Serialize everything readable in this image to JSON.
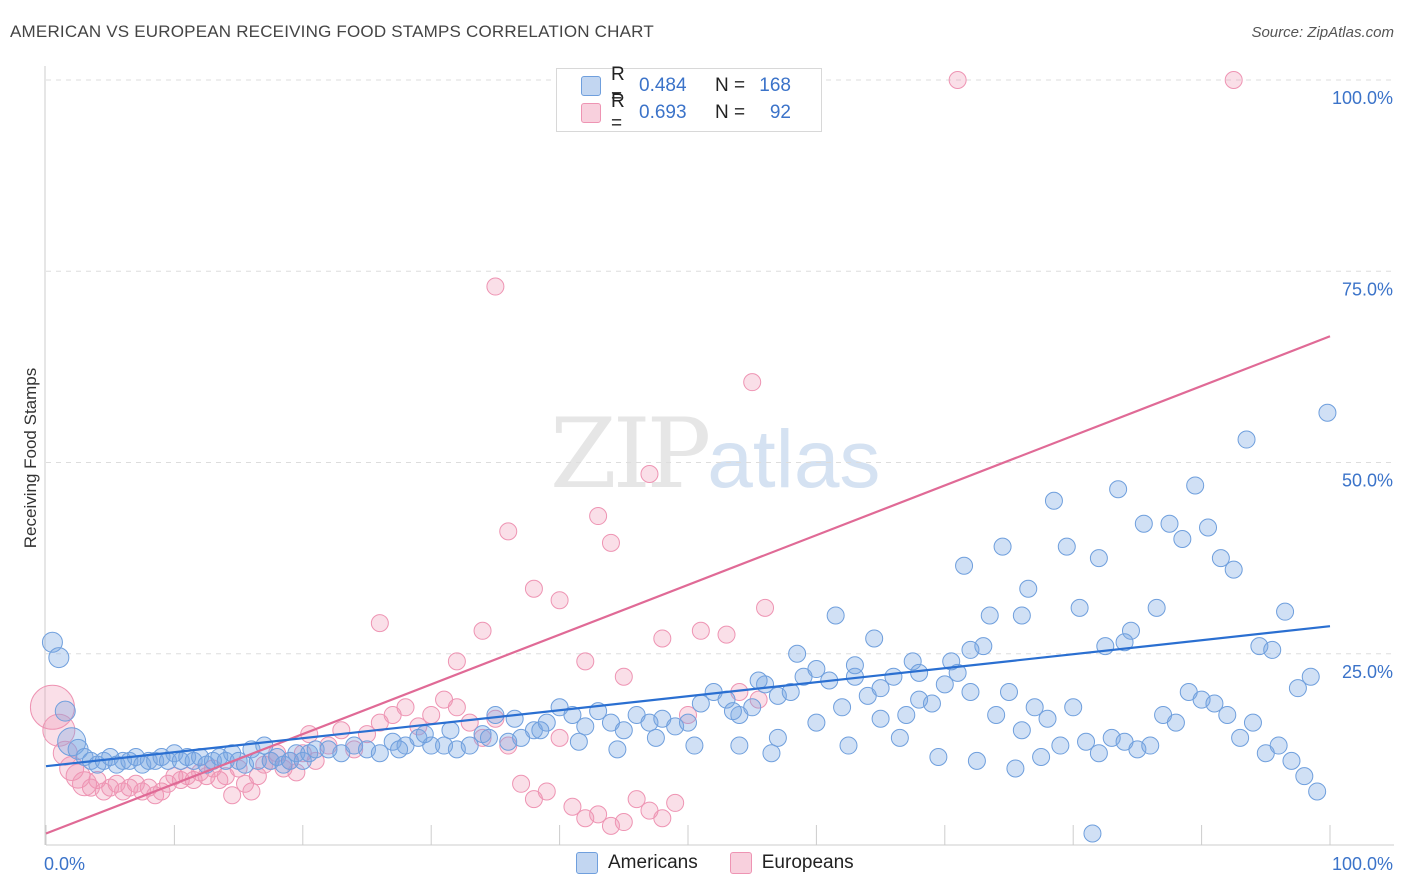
{
  "header": {
    "title": "AMERICAN VS EUROPEAN RECEIVING FOOD STAMPS CORRELATION CHART",
    "source": "Source: ZipAtlas.com"
  },
  "watermark": {
    "zip": "ZIP",
    "atlas": "atlas"
  },
  "colors": {
    "americans_fill": "rgba(120,165,225,0.35)",
    "americans_stroke": "#6f9fdd",
    "americans_line": "#2a6fd1",
    "europeans_fill": "rgba(240,150,180,0.30)",
    "europeans_stroke": "#ee94b3",
    "europeans_line": "#e06a96",
    "tick_label": "#3b73c9",
    "grid": "#dddddd"
  },
  "legend": {
    "rows": [
      {
        "r_label": "R =",
        "r_value": "0.484",
        "n_label": "N =",
        "n_value": "168"
      },
      {
        "r_label": "R =",
        "r_value": "0.693",
        "n_label": "N =",
        "n_value": "92"
      }
    ]
  },
  "bottom_legend": {
    "americans": "Americans",
    "europeans": "Europeans"
  },
  "chart_data": {
    "type": "scatter",
    "title": "AMERICAN VS EUROPEAN RECEIVING FOOD STAMPS CORRELATION CHART",
    "xlabel": "",
    "ylabel": "Receiving Food Stamps",
    "xlim": [
      0,
      100
    ],
    "ylim": [
      0,
      100
    ],
    "x_tick_labels": [
      "0.0%",
      "100.0%"
    ],
    "y_ticks": [
      25,
      50,
      75,
      100
    ],
    "y_tick_labels": [
      "25.0%",
      "50.0%",
      "75.0%",
      "100.0%"
    ],
    "grid": true,
    "legend_position": "top-center",
    "series": [
      {
        "name": "Americans",
        "r": 0.484,
        "n": 168,
        "trend": {
          "x": [
            0,
            100
          ],
          "y": [
            10.3,
            28.6
          ]
        },
        "points": [
          [
            0.5,
            26.5
          ],
          [
            1.0,
            24.5
          ],
          [
            1.5,
            17.5
          ],
          [
            2.0,
            13.5
          ],
          [
            2.5,
            12.5
          ],
          [
            3.0,
            11.5
          ],
          [
            3.5,
            11
          ],
          [
            4.0,
            10.5
          ],
          [
            4.5,
            11
          ],
          [
            5.0,
            11.5
          ],
          [
            5.5,
            10.5
          ],
          [
            6.0,
            11
          ],
          [
            6.5,
            11
          ],
          [
            7.0,
            11.5
          ],
          [
            7.5,
            10.5
          ],
          [
            8.0,
            11
          ],
          [
            8.5,
            11
          ],
          [
            9.0,
            11.5
          ],
          [
            9.5,
            11
          ],
          [
            10.0,
            12
          ],
          [
            10.5,
            11
          ],
          [
            11.0,
            11.5
          ],
          [
            11.5,
            11
          ],
          [
            12.0,
            11.5
          ],
          [
            12.5,
            10.5
          ],
          [
            13.0,
            11
          ],
          [
            13.5,
            11.5
          ],
          [
            14.0,
            11
          ],
          [
            14.5,
            12
          ],
          [
            15.0,
            11
          ],
          [
            15.5,
            10.5
          ],
          [
            16.0,
            12.5
          ],
          [
            16.5,
            11
          ],
          [
            17.0,
            13
          ],
          [
            17.5,
            11
          ],
          [
            18.0,
            11.5
          ],
          [
            18.5,
            10.5
          ],
          [
            19.0,
            11
          ],
          [
            19.5,
            12
          ],
          [
            20.0,
            11
          ],
          [
            20.5,
            12
          ],
          [
            21.0,
            12.5
          ],
          [
            22.0,
            12.5
          ],
          [
            23.0,
            12
          ],
          [
            24.0,
            13
          ],
          [
            25.0,
            12.5
          ],
          [
            26.0,
            12
          ],
          [
            27.0,
            13.5
          ],
          [
            28.0,
            13
          ],
          [
            29.0,
            14
          ],
          [
            30.0,
            13
          ],
          [
            31.0,
            13
          ],
          [
            32.0,
            12.5
          ],
          [
            33.0,
            13
          ],
          [
            34.0,
            14.5
          ],
          [
            35.0,
            17
          ],
          [
            36.0,
            13.5
          ],
          [
            37.0,
            14
          ],
          [
            38.0,
            15
          ],
          [
            39.0,
            16
          ],
          [
            40.0,
            18
          ],
          [
            41.0,
            17
          ],
          [
            42.0,
            15.5
          ],
          [
            43.0,
            17.5
          ],
          [
            44.0,
            16
          ],
          [
            45.0,
            15
          ],
          [
            46.0,
            17
          ],
          [
            47.0,
            16
          ],
          [
            48.0,
            16.5
          ],
          [
            49.0,
            15.5
          ],
          [
            50.0,
            16
          ],
          [
            51.0,
            18.5
          ],
          [
            52.0,
            20
          ],
          [
            53.0,
            19
          ],
          [
            54.0,
            17
          ],
          [
            55.0,
            18
          ],
          [
            56.0,
            21
          ],
          [
            57.0,
            19.5
          ],
          [
            58.0,
            20
          ],
          [
            59.0,
            22
          ],
          [
            60.0,
            23
          ],
          [
            61.0,
            21.5
          ],
          [
            62.0,
            18
          ],
          [
            63.0,
            22
          ],
          [
            64.0,
            19.5
          ],
          [
            65.0,
            20.5
          ],
          [
            66.0,
            22
          ],
          [
            67.0,
            17
          ],
          [
            68.0,
            19
          ],
          [
            69.0,
            18.5
          ],
          [
            70.0,
            21
          ],
          [
            71.0,
            22.5
          ],
          [
            72.0,
            20
          ],
          [
            73.0,
            26
          ],
          [
            74.0,
            17
          ],
          [
            75.0,
            20
          ],
          [
            76.0,
            15
          ],
          [
            77.0,
            18
          ],
          [
            78.0,
            16.5
          ],
          [
            79.0,
            13
          ],
          [
            80.0,
            18
          ],
          [
            81.0,
            13.5
          ],
          [
            82.0,
            12
          ],
          [
            83.0,
            14
          ],
          [
            84.0,
            13.5
          ],
          [
            85.0,
            12.5
          ],
          [
            86.0,
            13
          ],
          [
            87.0,
            17
          ],
          [
            88.0,
            16
          ],
          [
            89.0,
            20
          ],
          [
            90.0,
            19
          ],
          [
            91.0,
            18.5
          ],
          [
            92.0,
            17
          ],
          [
            93.0,
            14
          ],
          [
            94.0,
            16
          ],
          [
            95.0,
            12
          ],
          [
            96.0,
            13
          ],
          [
            97.0,
            11
          ],
          [
            98.0,
            9
          ],
          [
            99.0,
            7
          ],
          [
            55.5,
            21.5
          ],
          [
            58.5,
            25
          ],
          [
            61.5,
            30
          ],
          [
            64.5,
            27
          ],
          [
            67.5,
            24
          ],
          [
            70.5,
            24
          ],
          [
            73.5,
            30
          ],
          [
            74.5,
            39
          ],
          [
            76.5,
            33.5
          ],
          [
            78.5,
            45
          ],
          [
            80.5,
            31
          ],
          [
            82.5,
            26
          ],
          [
            84.5,
            28
          ],
          [
            86.5,
            31
          ],
          [
            88.5,
            40
          ],
          [
            90.5,
            41.5
          ],
          [
            92.5,
            36
          ],
          [
            94.5,
            26
          ],
          [
            96.5,
            30.5
          ],
          [
            98.5,
            22
          ],
          [
            71.5,
            36.5
          ],
          [
            79.5,
            39
          ],
          [
            83.5,
            46.5
          ],
          [
            85.5,
            42
          ],
          [
            87.5,
            42
          ],
          [
            89.5,
            47
          ],
          [
            91.5,
            37.5
          ],
          [
            93.5,
            53
          ],
          [
            95.5,
            25.5
          ],
          [
            97.5,
            20.5
          ],
          [
            82.0,
            37.5
          ],
          [
            84.0,
            26.5
          ],
          [
            76.0,
            30
          ],
          [
            72.0,
            25.5
          ],
          [
            68.0,
            22.5
          ],
          [
            65.0,
            16.5
          ],
          [
            63.0,
            23.5
          ],
          [
            60.0,
            16
          ],
          [
            57.0,
            14
          ],
          [
            54.0,
            13
          ],
          [
            50.5,
            13
          ],
          [
            47.5,
            14
          ],
          [
            44.5,
            12.5
          ],
          [
            41.5,
            13.5
          ],
          [
            38.5,
            15
          ],
          [
            36.5,
            16.5
          ],
          [
            34.5,
            14
          ],
          [
            31.5,
            15
          ],
          [
            29.5,
            14.5
          ],
          [
            27.5,
            12.5
          ],
          [
            53.5,
            17.5
          ],
          [
            56.5,
            12
          ],
          [
            62.5,
            13
          ],
          [
            66.5,
            14
          ],
          [
            69.5,
            11.5
          ],
          [
            72.5,
            11
          ],
          [
            75.5,
            10
          ],
          [
            77.5,
            11.5
          ],
          [
            81.5,
            1.5
          ],
          [
            99.8,
            56.5
          ]
        ]
      },
      {
        "name": "Europeans",
        "r": 0.693,
        "n": 92,
        "trend": {
          "x": [
            0,
            100
          ],
          "y": [
            1.5,
            66.5
          ]
        },
        "points": [
          [
            0.5,
            18
          ],
          [
            1.0,
            15
          ],
          [
            1.5,
            12
          ],
          [
            2.0,
            10
          ],
          [
            2.5,
            9
          ],
          [
            3.0,
            8
          ],
          [
            3.5,
            7.5
          ],
          [
            4.0,
            8.5
          ],
          [
            4.5,
            7
          ],
          [
            5.0,
            7.5
          ],
          [
            5.5,
            8
          ],
          [
            6.0,
            7
          ],
          [
            6.5,
            7.5
          ],
          [
            7.0,
            8
          ],
          [
            7.5,
            7
          ],
          [
            8.0,
            7.5
          ],
          [
            8.5,
            6.5
          ],
          [
            9.0,
            7
          ],
          [
            9.5,
            8
          ],
          [
            10.0,
            9
          ],
          [
            10.5,
            8.5
          ],
          [
            11.0,
            9
          ],
          [
            11.5,
            8.5
          ],
          [
            12.0,
            9.5
          ],
          [
            12.5,
            9
          ],
          [
            13.0,
            10
          ],
          [
            13.5,
            8.5
          ],
          [
            14.0,
            9
          ],
          [
            14.5,
            6.5
          ],
          [
            15.0,
            10
          ],
          [
            15.5,
            8
          ],
          [
            16.0,
            7
          ],
          [
            16.5,
            9
          ],
          [
            17.0,
            10.5
          ],
          [
            17.5,
            11
          ],
          [
            18.0,
            12
          ],
          [
            18.5,
            10
          ],
          [
            19.0,
            11
          ],
          [
            19.5,
            9.5
          ],
          [
            20.0,
            12
          ],
          [
            20.5,
            14.5
          ],
          [
            21.0,
            11
          ],
          [
            22.0,
            13
          ],
          [
            23.0,
            15
          ],
          [
            24.0,
            12.5
          ],
          [
            25.0,
            14.5
          ],
          [
            26.0,
            16
          ],
          [
            27.0,
            17
          ],
          [
            28.0,
            18
          ],
          [
            29.0,
            15.5
          ],
          [
            30.0,
            17
          ],
          [
            31.0,
            19
          ],
          [
            32.0,
            18
          ],
          [
            33.0,
            16
          ],
          [
            34.0,
            14
          ],
          [
            35.0,
            16.5
          ],
          [
            36.0,
            13
          ],
          [
            37.0,
            8
          ],
          [
            38.0,
            6
          ],
          [
            39.0,
            7
          ],
          [
            40.0,
            14
          ],
          [
            41.0,
            5
          ],
          [
            42.0,
            3.5
          ],
          [
            43.0,
            4
          ],
          [
            44.0,
            2.5
          ],
          [
            45.0,
            3
          ],
          [
            46.0,
            6
          ],
          [
            47.0,
            4.5
          ],
          [
            48.0,
            3.5
          ],
          [
            49.0,
            5.5
          ],
          [
            26.0,
            29
          ],
          [
            32.0,
            24
          ],
          [
            34.0,
            28
          ],
          [
            35.0,
            73
          ],
          [
            36.0,
            41
          ],
          [
            38.0,
            33.5
          ],
          [
            40.0,
            32
          ],
          [
            42.0,
            24
          ],
          [
            43.0,
            43
          ],
          [
            44.0,
            39.5
          ],
          [
            45.0,
            22
          ],
          [
            47.0,
            48.5
          ],
          [
            48.0,
            27
          ],
          [
            50.0,
            17
          ],
          [
            51.0,
            28
          ],
          [
            53.0,
            27.5
          ],
          [
            54.0,
            20
          ],
          [
            55.0,
            60.5
          ],
          [
            55.5,
            19
          ],
          [
            56.0,
            31
          ],
          [
            71.0,
            100
          ],
          [
            92.5,
            100
          ]
        ]
      }
    ]
  }
}
